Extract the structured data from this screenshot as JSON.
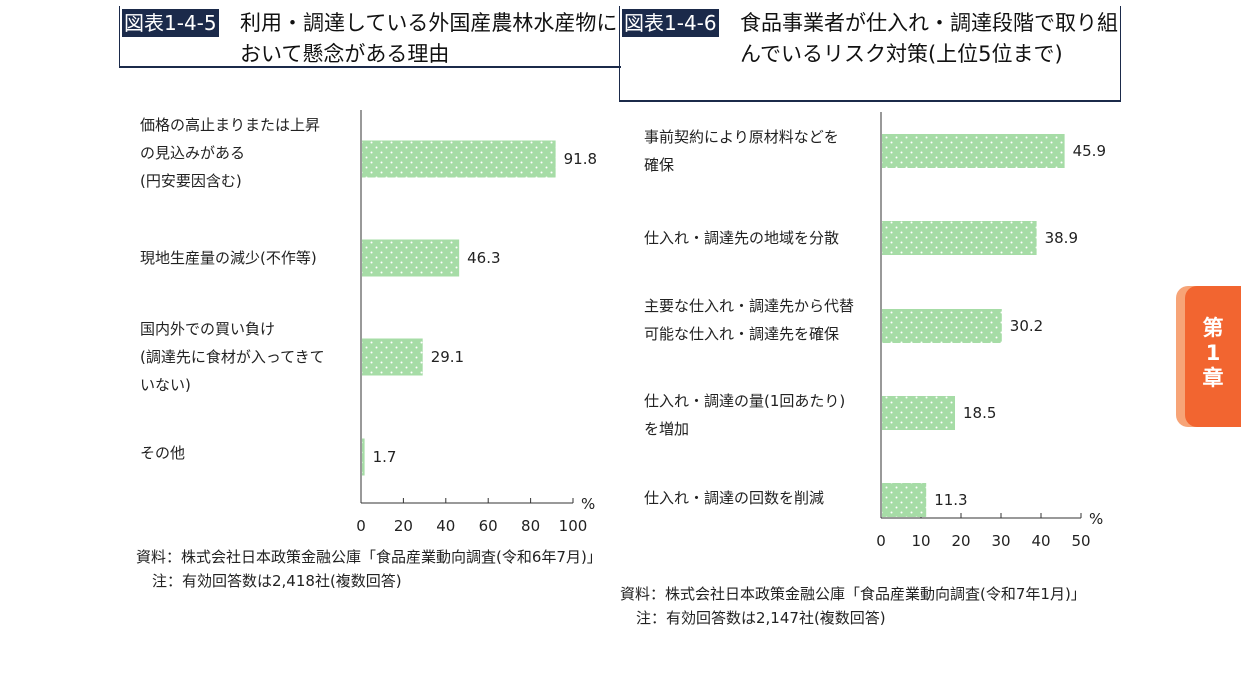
{
  "figure1": {
    "tag": "図表1-4-5",
    "title": "利用・調達している外国産農林水産物において懸念がある理由",
    "notes": [
      "資料：株式会社日本政策金融公庫「食品産業動向調査(令和6年7月)」",
      "注：有効回答数は2,418社(複数回答)"
    ]
  },
  "figure2": {
    "tag": "図表1-4-6",
    "title": "食品事業者が仕入れ・調達段階で取り組んでいるリスク対策(上位5位まで)",
    "notes": [
      "資料：株式会社日本政策金融公庫「食品産業動向調査(令和7年1月)」",
      "注：有効回答数は2,147社(複数回答)"
    ]
  },
  "chapter_tab": {
    "line1": "第",
    "line2": "1",
    "line3": "章"
  },
  "colors": {
    "bar": "#a6dca6",
    "dot": "#ffffff",
    "header_bg": "#1b2a4a",
    "tab": "#f26530",
    "tab_light": "#f7a477"
  },
  "chart_data": [
    {
      "type": "bar",
      "orientation": "horizontal",
      "categories": [
        [
          "価格の高止まりまたは上昇",
          "の見込みがある",
          "(円安要因含む)"
        ],
        [
          "現地生産量の減少(不作等)"
        ],
        [
          "国内外での買い負け",
          "(調達先に食材が入ってきて",
          "いない)"
        ],
        [
          "その他"
        ]
      ],
      "values": [
        91.8,
        46.3,
        29.1,
        1.7
      ],
      "value_labels": [
        "91.8",
        "46.3",
        "29.1",
        "1.7"
      ],
      "xlim": [
        0,
        100
      ],
      "ticks": [
        "0",
        "20",
        "40",
        "60",
        "80",
        "100"
      ],
      "unit": "%"
    },
    {
      "type": "bar",
      "orientation": "horizontal",
      "categories": [
        [
          "事前契約により原材料などを",
          "確保"
        ],
        [
          "仕入れ・調達先の地域を分散"
        ],
        [
          "主要な仕入れ・調達先から代替",
          "可能な仕入れ・調達先を確保"
        ],
        [
          "仕入れ・調達の量(1回あたり)",
          "を増加"
        ],
        [
          "仕入れ・調達の回数を削減"
        ]
      ],
      "values": [
        45.9,
        38.9,
        30.2,
        18.5,
        11.3
      ],
      "value_labels": [
        "45.9",
        "38.9",
        "30.2",
        "18.5",
        "11.3"
      ],
      "xlim": [
        0,
        50
      ],
      "ticks": [
        "0",
        "10",
        "20",
        "30",
        "40",
        "50"
      ],
      "unit": "%"
    }
  ]
}
